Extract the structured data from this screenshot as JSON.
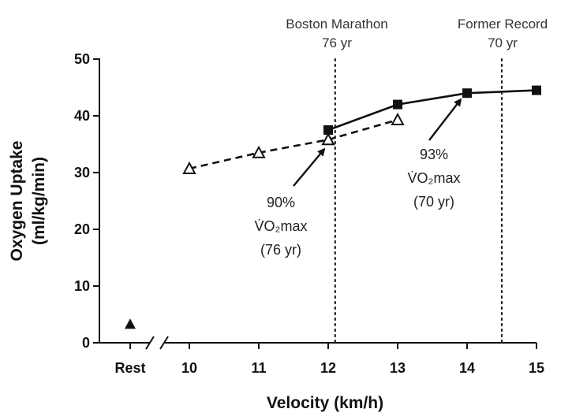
{
  "chart_data": {
    "type": "line",
    "title": "",
    "xlabel": "Velocity (km/h)",
    "ylabel": "Oxygen Uptake (ml/kg/min)",
    "ylabel_lines": [
      "Oxygen Uptake",
      "(ml/kg/min)"
    ],
    "ylim": [
      0,
      50
    ],
    "xlim": [
      10,
      15
    ],
    "yticks": [
      0,
      10,
      20,
      30,
      40,
      50
    ],
    "xticks": [
      10,
      11,
      12,
      13,
      14,
      15
    ],
    "categories_extra": [
      "Rest"
    ],
    "axis_break": true,
    "grid": false,
    "series": [
      {
        "marker": "filled-square",
        "line_style": "solid",
        "color": "#111111",
        "x": [
          12,
          13,
          14,
          15
        ],
        "y": [
          37.5,
          42,
          44,
          44.5
        ]
      },
      {
        "marker": "open-triangle",
        "line_style": "dashed",
        "color": "#111111",
        "x": [
          10,
          11,
          12,
          13
        ],
        "y": [
          30.7,
          33.5,
          35.8,
          39.3
        ]
      }
    ],
    "rest_point": {
      "x": "Rest",
      "y": 3.3,
      "marker": "filled-triangle"
    },
    "reference_lines": [
      {
        "x": 12.1,
        "label_lines": [
          "Boston Marathon",
          "76 yr"
        ],
        "style": "dotted"
      },
      {
        "x": 14.5,
        "label_lines": [
          "Former Record",
          "70 yr"
        ],
        "style": "dotted"
      }
    ],
    "annotations": [
      {
        "id": "annot-76",
        "lines": [
          "90%",
          "V̇O₂max",
          "(76 yr)"
        ],
        "points_to": {
          "x": 12,
          "y": 35.8
        }
      },
      {
        "id": "annot-70",
        "lines": [
          "93%",
          "V̇O₂max",
          "(70 yr)"
        ],
        "points_to": {
          "x": 14,
          "y": 44
        }
      }
    ]
  }
}
